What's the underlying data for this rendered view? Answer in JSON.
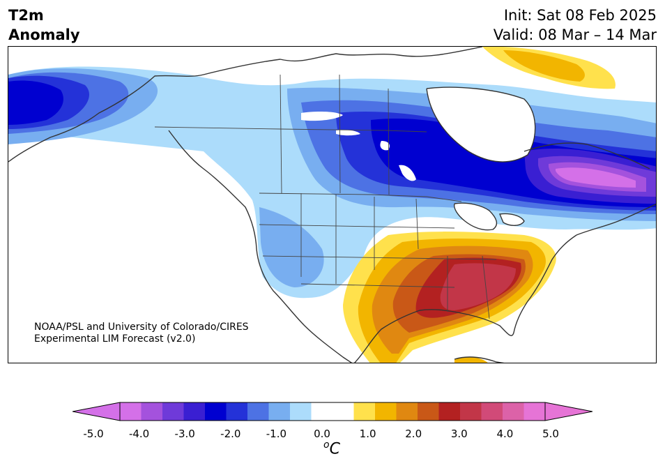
{
  "title": {
    "line1": "T2m",
    "line2": "Anomaly"
  },
  "dates": {
    "init": "Init: Sat 08 Feb 2025",
    "valid": "Valid: 08 Mar – 14 Mar"
  },
  "credit": {
    "line1": "NOAA/PSL and University of Colorado/CIRES",
    "line2": "Experimental LIM Forecast (v2.0)"
  },
  "colorbar": {
    "ticks": [
      "-5.0",
      "-4.0",
      "-3.0",
      "-2.0",
      "-1.0",
      "0.0",
      "1.0",
      "2.0",
      "3.0",
      "4.0",
      "5.0"
    ],
    "units_base": "C",
    "units_sup": "o",
    "colors": [
      "#d470e8",
      "#a452dd",
      "#6f3ad9",
      "#3a1fd2",
      "#0000d0",
      "#2432d8",
      "#4d72e4",
      "#78aef0",
      "#acdcfb",
      "#ffffff",
      "#ffffff",
      "#ffe14c",
      "#f2b500",
      "#e08811",
      "#c95817",
      "#b32121",
      "#c23648",
      "#d14a78",
      "#dc62a8",
      "#e674d6"
    ],
    "under_color": "#d470e8",
    "over_color": "#e674d6"
  }
}
